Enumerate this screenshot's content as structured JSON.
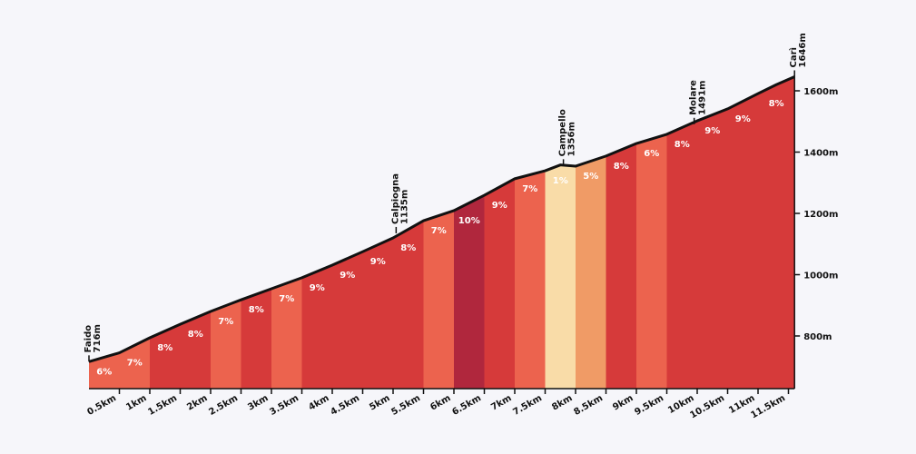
{
  "chart_data": {
    "type": "area",
    "title": "",
    "xlabel": "",
    "ylabel": "",
    "xlim": [
      0,
      11.6
    ],
    "ylim": [
      628,
      1700
    ],
    "x_ticks": [
      "0.5km",
      "1km",
      "1.5km",
      "2km",
      "2.5km",
      "3km",
      "3.5km",
      "4km",
      "4.5km",
      "5km",
      "5.5km",
      "6km",
      "6.5km",
      "7km",
      "7.5km",
      "8km",
      "8.5km",
      "9km",
      "9.5km",
      "10km",
      "10.5km",
      "11km",
      "11.5km"
    ],
    "y_ticks": [
      "800m",
      "1000m",
      "1200m",
      "1400m",
      "1600m"
    ],
    "profile": [
      [
        0,
        716
      ],
      [
        0.5,
        745
      ],
      [
        1,
        794
      ],
      [
        1.5,
        838
      ],
      [
        2,
        880
      ],
      [
        2.5,
        918
      ],
      [
        3,
        954
      ],
      [
        3.5,
        990
      ],
      [
        4,
        1031
      ],
      [
        4.5,
        1075
      ],
      [
        5,
        1120
      ],
      [
        5.5,
        1176
      ],
      [
        6,
        1209
      ],
      [
        6.5,
        1259
      ],
      [
        7,
        1313
      ],
      [
        7.5,
        1339
      ],
      [
        7.75,
        1358
      ],
      [
        8,
        1354
      ],
      [
        8.5,
        1387
      ],
      [
        9,
        1428
      ],
      [
        9.5,
        1458
      ],
      [
        10,
        1502
      ],
      [
        10.5,
        1541
      ],
      [
        11,
        1591
      ],
      [
        11.3,
        1620
      ],
      [
        11.6,
        1646
      ]
    ],
    "segments": [
      {
        "from": 0,
        "to": 0.5,
        "grade": "6%"
      },
      {
        "from": 0.5,
        "to": 1,
        "grade": "7%"
      },
      {
        "from": 1,
        "to": 1.5,
        "grade": "8%"
      },
      {
        "from": 1.5,
        "to": 2,
        "grade": "8%"
      },
      {
        "from": 2,
        "to": 2.5,
        "grade": "7%"
      },
      {
        "from": 2.5,
        "to": 3,
        "grade": "8%"
      },
      {
        "from": 3,
        "to": 3.5,
        "grade": "7%"
      },
      {
        "from": 3.5,
        "to": 4,
        "grade": "9%"
      },
      {
        "from": 4,
        "to": 4.5,
        "grade": "9%"
      },
      {
        "from": 4.5,
        "to": 5,
        "grade": "9%"
      },
      {
        "from": 5,
        "to": 5.5,
        "grade": "8%"
      },
      {
        "from": 5.5,
        "to": 6,
        "grade": "7%"
      },
      {
        "from": 6,
        "to": 6.5,
        "grade": "10%"
      },
      {
        "from": 6.5,
        "to": 7,
        "grade": "9%"
      },
      {
        "from": 7,
        "to": 7.5,
        "grade": "7%"
      },
      {
        "from": 7.5,
        "to": 8,
        "grade": "1%"
      },
      {
        "from": 8,
        "to": 8.5,
        "grade": "5%"
      },
      {
        "from": 8.5,
        "to": 9,
        "grade": "8%"
      },
      {
        "from": 9,
        "to": 9.5,
        "grade": "6%"
      },
      {
        "from": 9.5,
        "to": 10,
        "grade": "8%"
      },
      {
        "from": 10,
        "to": 10.5,
        "grade": "9%"
      },
      {
        "from": 10.5,
        "to": 11,
        "grade": "9%"
      },
      {
        "from": 11,
        "to": 11.6,
        "grade": "8%"
      }
    ],
    "waypoints": [
      {
        "name": "Faido",
        "elev": "716m",
        "km": 0,
        "e": 716
      },
      {
        "name": "Calpiogna",
        "elev": "1135m",
        "km": 5.05,
        "e": 1135
      },
      {
        "name": "Campello",
        "elev": "1356m",
        "km": 7.8,
        "e": 1356
      },
      {
        "name": "Molare",
        "elev": "1491m",
        "km": 9.95,
        "e": 1491
      },
      {
        "name": "Carì",
        "elev": "1646m",
        "km": 11.6,
        "e": 1646
      }
    ],
    "grade_colors": {
      "1": "#f9dca8",
      "5": "#f09b66",
      "6": "#ec634e",
      "7": "#ec634e",
      "8": "#d63a3a",
      "9": "#d63a3a",
      "10": "#b0273d"
    }
  }
}
